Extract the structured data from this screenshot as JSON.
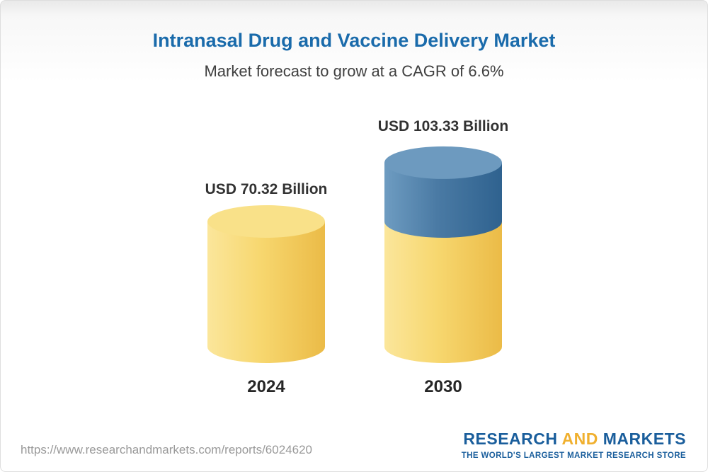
{
  "header": {
    "title": "Intranasal Drug and Vaccine Delivery Market",
    "subtitle": "Market forecast to grow at a CAGR of 6.6%"
  },
  "chart_data": {
    "type": "bar",
    "subtype": "3d-cylinder-stacked",
    "title": "Intranasal Drug and Vaccine Delivery Market",
    "subtitle": "Market forecast to grow at a CAGR of 6.6%",
    "unit": "USD Billion",
    "cagr_percent": 6.6,
    "categories": [
      "2024",
      "2030"
    ],
    "totals": [
      70.32,
      103.33
    ],
    "series": [
      {
        "name": "2024 market size (base)",
        "color": "#F6D26A",
        "values": [
          70.32,
          70.32
        ]
      },
      {
        "name": "Growth to 2030",
        "color": "#3E7096",
        "values": [
          0,
          33.01
        ]
      }
    ],
    "data_labels": [
      "USD 70.32 Billion",
      "USD 103.33 Billion"
    ],
    "ylim": [
      0,
      110
    ],
    "grid": false,
    "legend": false,
    "xlabel": "",
    "ylabel": ""
  },
  "bars": [
    {
      "year": "2024",
      "label": "USD 70.32 Billion"
    },
    {
      "year": "2030",
      "label": "USD 103.33 Billion"
    }
  ],
  "footer": {
    "url": "https://www.researchandmarkets.com/reports/6024620",
    "logo": {
      "word1": "RESEARCH",
      "word2": "AND",
      "word3": "MARKETS",
      "tagline": "THE WORLD'S LARGEST MARKET RESEARCH STORE"
    }
  },
  "colors": {
    "title_blue": "#1A6BAB",
    "subtitle_gray": "#404040",
    "bar_yellow": "#F6D26A",
    "bar_yellow_top": "#F9E189",
    "bar_blue": "#3E7096",
    "bar_blue_top": "#6D9ABF",
    "logo_blue": "#1A5E9C",
    "logo_yellow": "#F0B02F",
    "url_gray": "#999999"
  }
}
